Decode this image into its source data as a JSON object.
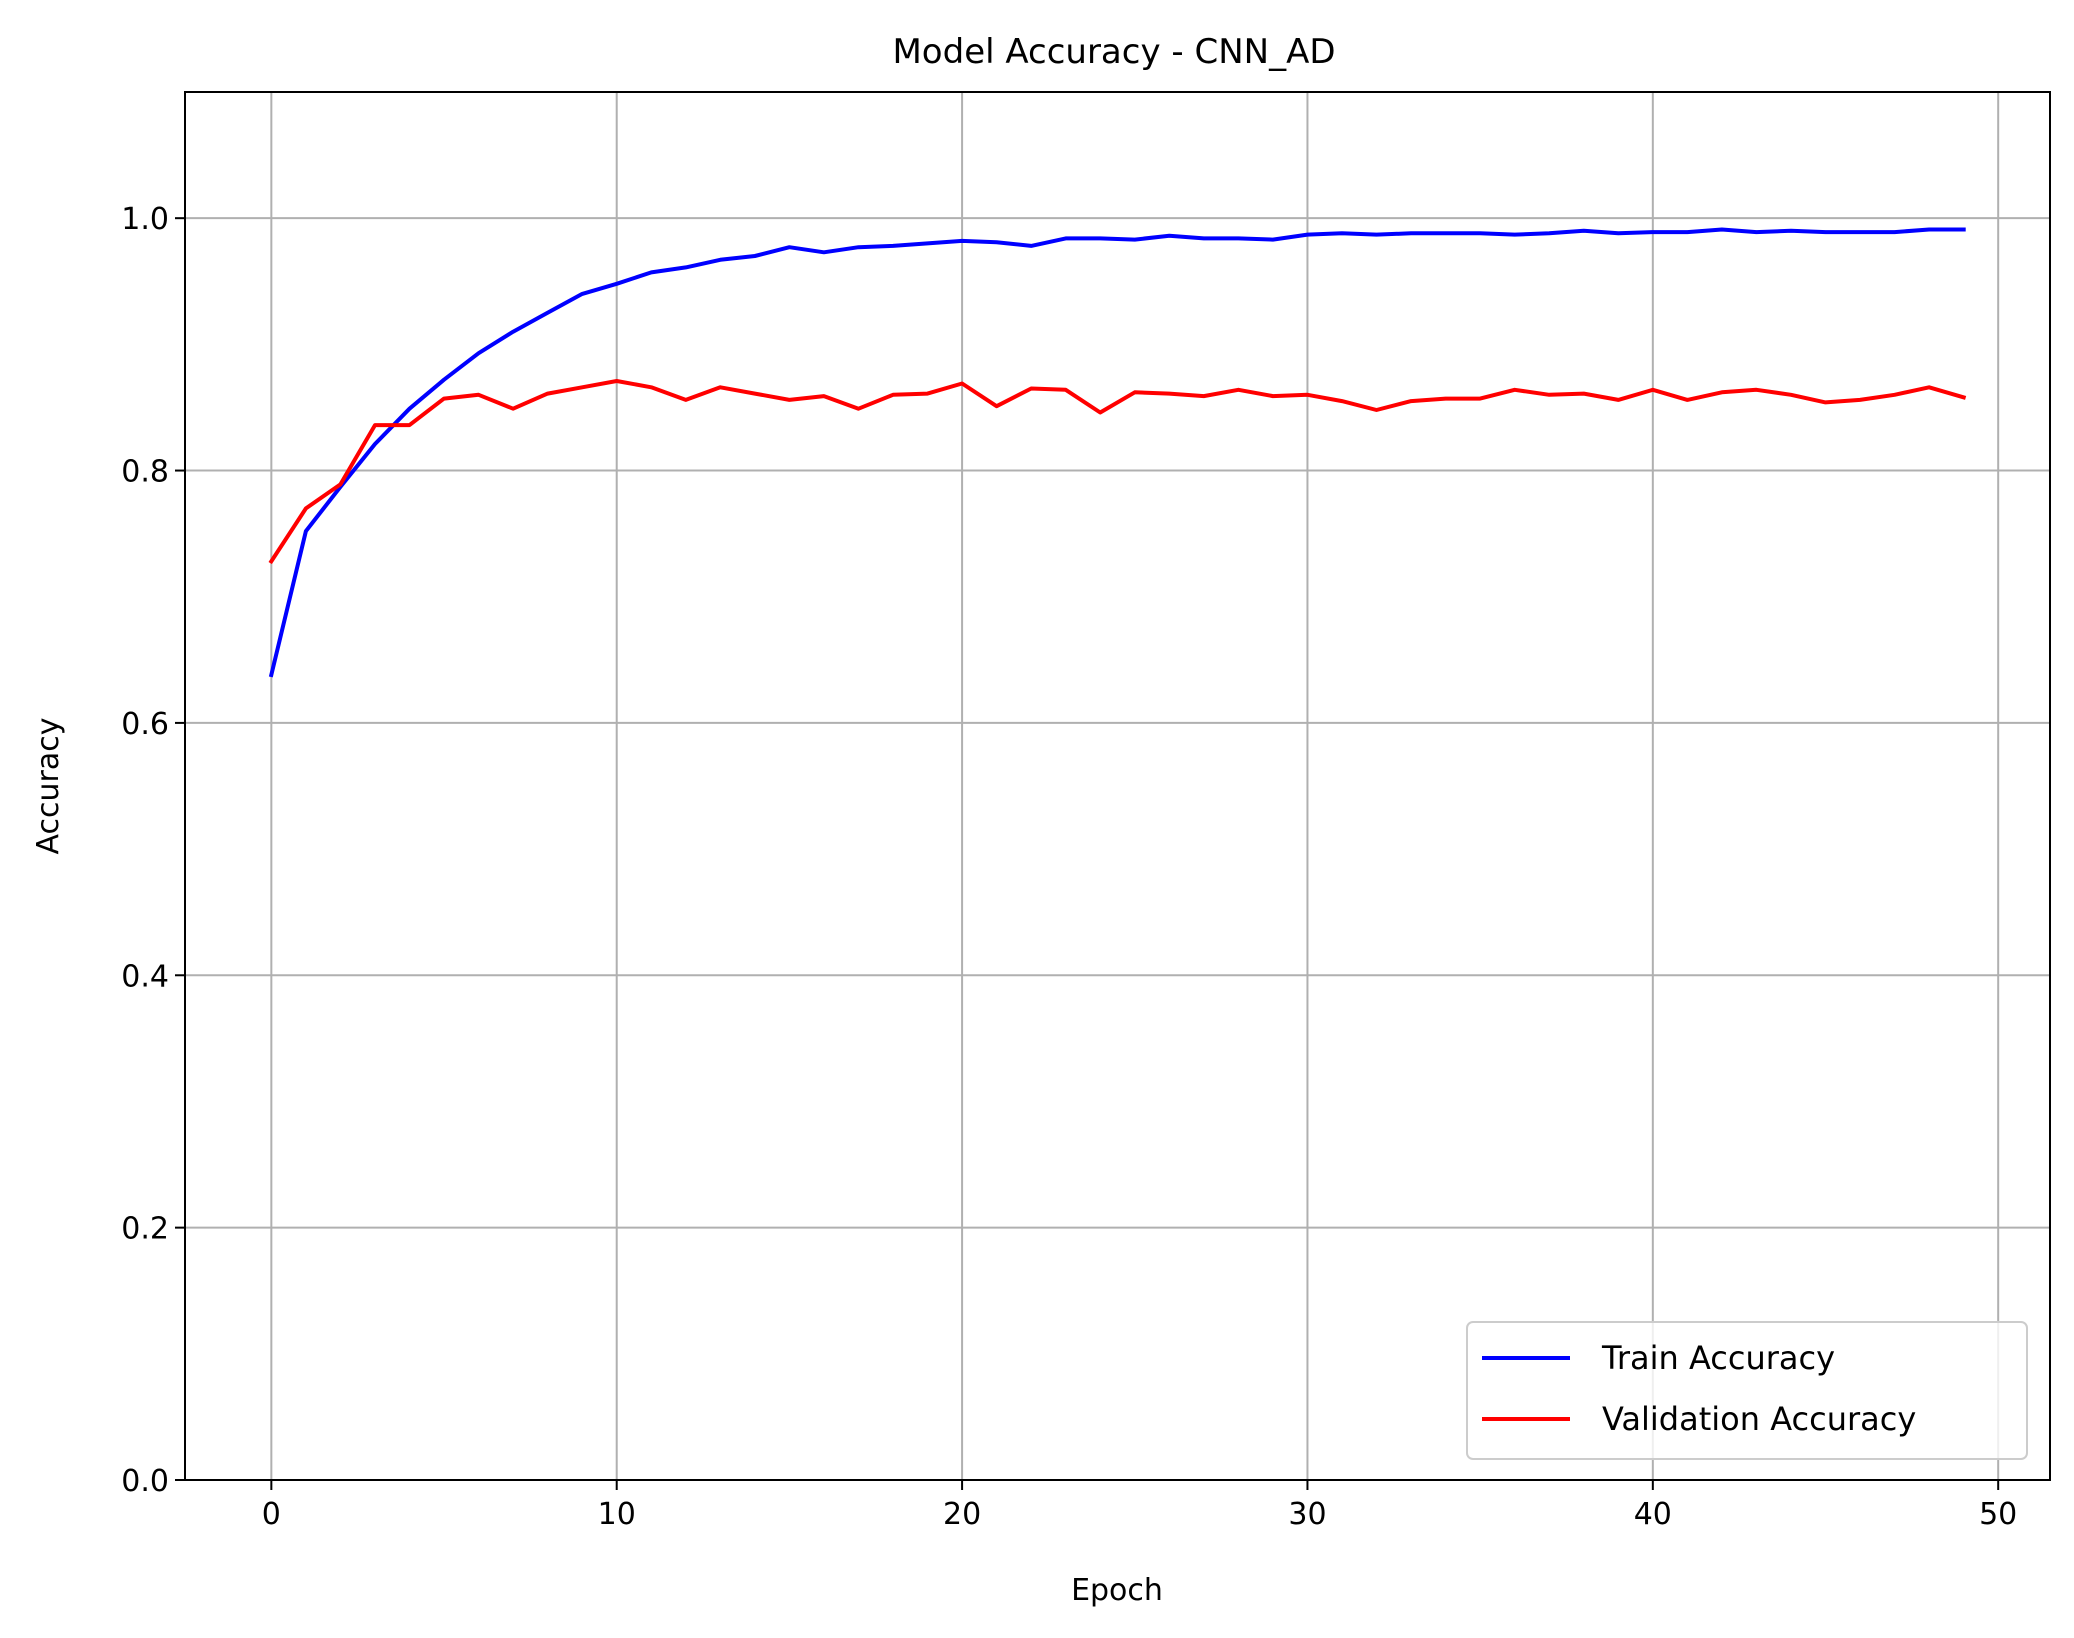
{
  "chart_data": {
    "type": "line",
    "title": "Model Accuracy - CNN_AD",
    "xlabel": "Epoch",
    "ylabel": "Accuracy",
    "xlim": [
      -2.5,
      51.5
    ],
    "ylim": [
      0.0,
      1.1
    ],
    "xticks": [
      0,
      10,
      20,
      30,
      40,
      50
    ],
    "yticks": [
      0.0,
      0.2,
      0.4,
      0.6,
      0.8,
      1.0
    ],
    "xtick_labels": [
      "0",
      "10",
      "20",
      "30",
      "40",
      "50"
    ],
    "ytick_labels": [
      "0.0",
      "0.2",
      "0.4",
      "0.6",
      "0.8",
      "1.0"
    ],
    "grid": true,
    "legend_position": "lower-right",
    "x": [
      0,
      1,
      2,
      3,
      4,
      5,
      6,
      7,
      8,
      9,
      10,
      11,
      12,
      13,
      14,
      15,
      16,
      17,
      18,
      19,
      20,
      21,
      22,
      23,
      24,
      25,
      26,
      27,
      28,
      29,
      30,
      31,
      32,
      33,
      34,
      35,
      36,
      37,
      38,
      39,
      40,
      41,
      42,
      43,
      44,
      45,
      46,
      47,
      48,
      49
    ],
    "series": [
      {
        "name": "Train Accuracy",
        "color": "#0000ff",
        "values": [
          0.638,
          0.752,
          0.787,
          0.821,
          0.849,
          0.872,
          0.893,
          0.91,
          0.925,
          0.94,
          0.948,
          0.957,
          0.961,
          0.967,
          0.97,
          0.977,
          0.973,
          0.977,
          0.978,
          0.98,
          0.982,
          0.981,
          0.978,
          0.984,
          0.984,
          0.983,
          0.986,
          0.984,
          0.984,
          0.983,
          0.987,
          0.988,
          0.987,
          0.988,
          0.988,
          0.988,
          0.987,
          0.988,
          0.99,
          0.988,
          0.989,
          0.989,
          0.991,
          0.989,
          0.99,
          0.989,
          0.989,
          0.989,
          0.991,
          0.991
        ]
      },
      {
        "name": "Validation Accuracy",
        "color": "#ff0000",
        "values": [
          0.728,
          0.77,
          0.789,
          0.836,
          0.836,
          0.857,
          0.86,
          0.849,
          0.861,
          0.866,
          0.871,
          0.866,
          0.856,
          0.866,
          0.861,
          0.856,
          0.859,
          0.849,
          0.86,
          0.861,
          0.869,
          0.851,
          0.865,
          0.864,
          0.846,
          0.862,
          0.861,
          0.859,
          0.864,
          0.859,
          0.86,
          0.855,
          0.848,
          0.855,
          0.857,
          0.857,
          0.864,
          0.86,
          0.861,
          0.856,
          0.864,
          0.856,
          0.862,
          0.864,
          0.86,
          0.854,
          0.856,
          0.86,
          0.866,
          0.858
        ]
      }
    ]
  }
}
